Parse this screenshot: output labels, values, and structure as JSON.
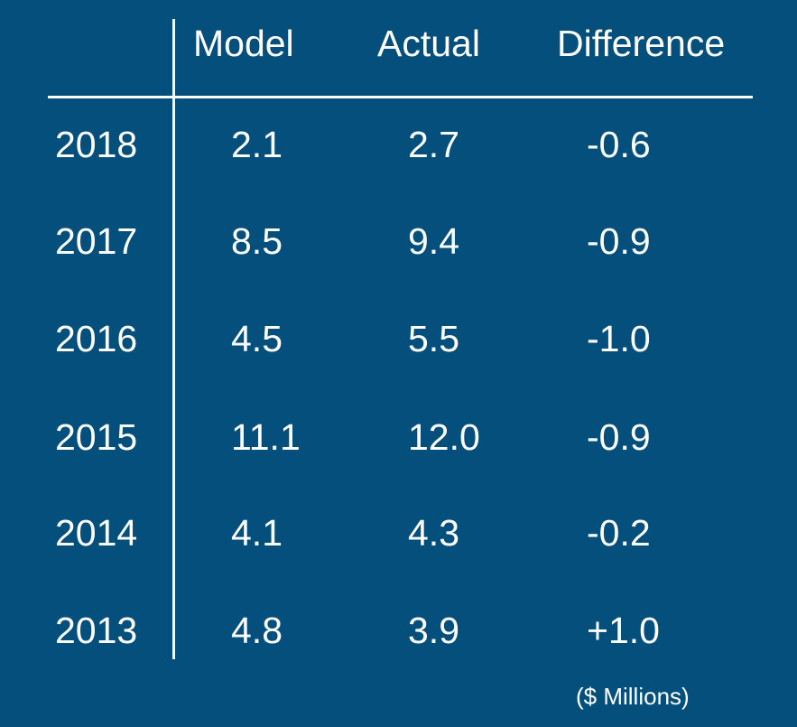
{
  "colors": {
    "background": "#044f7c",
    "text": "#ffffff"
  },
  "chart_data": {
    "type": "table",
    "columns": [
      "Model",
      "Actual",
      "Difference"
    ],
    "rows": [
      {
        "year": "2018",
        "model": "2.1",
        "actual": "2.7",
        "difference": "-0.6"
      },
      {
        "year": "2017",
        "model": "8.5",
        "actual": "9.4",
        "difference": "-0.9"
      },
      {
        "year": "2016",
        "model": "4.5",
        "actual": "5.5",
        "difference": "-1.0"
      },
      {
        "year": "2015",
        "model": "11.1",
        "actual": "12.0",
        "difference": "-0.9"
      },
      {
        "year": "2014",
        "model": "4.1",
        "actual": "4.3",
        "difference": "-0.2"
      },
      {
        "year": "2013",
        "model": "4.8",
        "actual": "3.9",
        "difference": "+1.0"
      }
    ],
    "unit_note": "($ Millions)"
  }
}
